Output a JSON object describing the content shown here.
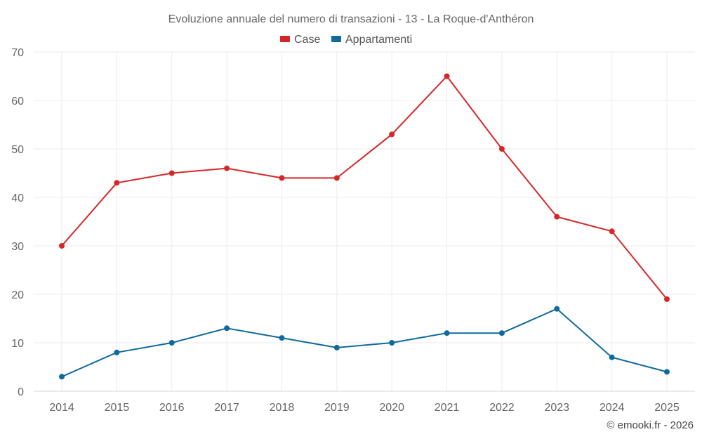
{
  "chart_data": {
    "type": "line",
    "title": "Evoluzione annuale del numero di transazioni - 13 - La Roque-d'Anthéron",
    "categories": [
      "2014",
      "2015",
      "2016",
      "2017",
      "2018",
      "2019",
      "2020",
      "2021",
      "2022",
      "2023",
      "2024",
      "2025"
    ],
    "series": [
      {
        "name": "Case",
        "color": "#d62728",
        "values": [
          30,
          43,
          45,
          46,
          44,
          44,
          53,
          65,
          50,
          36,
          33,
          19
        ]
      },
      {
        "name": "Appartamenti",
        "color": "#0f6a9d",
        "values": [
          3,
          8,
          10,
          13,
          11,
          9,
          10,
          12,
          12,
          17,
          7,
          4
        ]
      }
    ],
    "y_ticks": [
      "0",
      "10",
      "20",
      "30",
      "40",
      "50",
      "60",
      "70"
    ],
    "ylim": [
      0,
      70
    ],
    "legend_position": "top-center",
    "grid": true,
    "xlabel": "",
    "ylabel": ""
  },
  "credit": "© emooki.fr - 2026"
}
